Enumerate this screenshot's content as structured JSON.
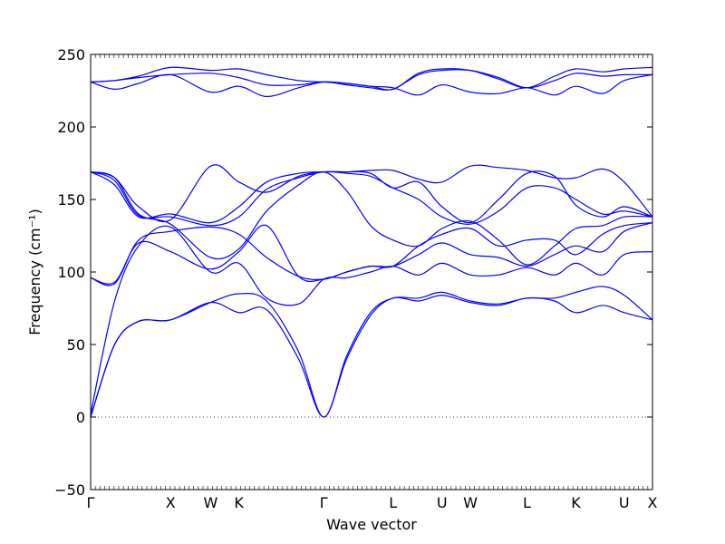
{
  "chart_data": {
    "type": "line",
    "title": "",
    "xlabel": "Wave vector",
    "ylabel": "Frequency (cm⁻¹)",
    "ylim": [
      -50,
      250
    ],
    "yticks": [
      -50,
      0,
      50,
      100,
      150,
      200,
      250
    ],
    "grid": false,
    "legend": "none",
    "zero_line": {
      "y": 0,
      "style": "dotted"
    },
    "high_symmetry_points": [
      {
        "label": "Γ",
        "x": 0.0
      },
      {
        "label": "X",
        "x": 1.0
      },
      {
        "label": "W",
        "x": 1.5
      },
      {
        "label": "K",
        "x": 1.854
      },
      {
        "label": "Γ",
        "x": 2.914
      },
      {
        "label": "L",
        "x": 3.78
      },
      {
        "label": "U",
        "x": 4.393
      },
      {
        "label": "W",
        "x": 4.747
      },
      {
        "label": "L",
        "x": 5.454
      },
      {
        "label": "K",
        "x": 6.067
      },
      {
        "label": "U",
        "x": 6.67
      },
      {
        "label": "X",
        "x": 7.024
      }
    ],
    "band_color": "#0000ff",
    "series": [
      {
        "x": [
          0,
          0.3,
          0.6,
          1.0,
          1.5,
          1.854,
          2.2,
          2.6,
          2.914,
          3.2,
          3.5,
          3.78,
          4.1,
          4.393,
          4.747,
          5.1,
          5.454,
          5.8,
          6.067,
          6.4,
          6.67,
          7.024
        ],
        "values": [
          0,
          50,
          66,
          67,
          79,
          72,
          74,
          40,
          0,
          40,
          70,
          82,
          80,
          84,
          79,
          77,
          82,
          80,
          72,
          77,
          72,
          67
        ]
      },
      {
        "x": [
          0,
          0.3,
          0.6,
          1.0,
          1.5,
          1.854,
          2.2,
          2.6,
          2.914,
          3.2,
          3.5,
          3.78,
          4.1,
          4.393,
          4.747,
          5.1,
          5.454,
          5.8,
          6.067,
          6.4,
          6.67,
          7.024
        ],
        "values": [
          0,
          50,
          66,
          67,
          79,
          85,
          80,
          45,
          0,
          42,
          72,
          82,
          82,
          86,
          80,
          78,
          82,
          82,
          86,
          90,
          84,
          67
        ]
      },
      {
        "x": [
          0,
          0.3,
          0.6,
          1.0,
          1.5,
          1.854,
          2.2,
          2.6,
          2.914,
          3.2,
          3.5,
          3.78,
          4.1,
          4.393,
          4.747,
          5.1,
          5.454,
          5.8,
          6.067,
          6.4,
          6.67,
          7.024
        ],
        "values": [
          2,
          80,
          118,
          131,
          100,
          106,
          82,
          78,
          95,
          96,
          100,
          104,
          98,
          106,
          98,
          98,
          103,
          98,
          106,
          98,
          112,
          114
        ]
      },
      {
        "x": [
          0,
          0.3,
          0.6,
          1.0,
          1.5,
          1.854,
          2.2,
          2.6,
          2.914,
          3.2,
          3.5,
          3.78,
          4.1,
          4.393,
          4.747,
          5.1,
          5.454,
          5.8,
          6.067,
          6.4,
          6.67,
          7.024
        ],
        "values": [
          96,
          93,
          120,
          114,
          102,
          114,
          132,
          97,
          95,
          100,
          104,
          104,
          112,
          120,
          112,
          110,
          104,
          112,
          118,
          114,
          128,
          134
        ]
      },
      {
        "x": [
          0,
          0.3,
          0.6,
          1.0,
          1.5,
          1.854,
          2.2,
          2.6,
          2.914,
          3.2,
          3.5,
          3.78,
          4.1,
          4.393,
          4.747,
          5.1,
          5.454,
          5.8,
          6.067,
          6.4,
          6.67,
          7.024
        ],
        "values": [
          96,
          92,
          122,
          128,
          131,
          126,
          110,
          97,
          95,
          100,
          104,
          104,
          118,
          126,
          130,
          118,
          122,
          122,
          112,
          126,
          132,
          134
        ]
      },
      {
        "x": [
          0,
          0.3,
          0.6,
          1.0,
          1.5,
          1.854,
          2.2,
          2.6,
          2.914,
          3.2,
          3.5,
          3.78,
          4.1,
          4.393,
          4.747,
          5.1,
          5.454,
          5.8,
          6.067,
          6.4,
          6.67,
          7.024
        ],
        "values": [
          169,
          165,
          140,
          133,
          110,
          116,
          142,
          160,
          169,
          156,
          132,
          122,
          118,
          130,
          135,
          122,
          105,
          118,
          130,
          132,
          138,
          138
        ]
      },
      {
        "x": [
          0,
          0.3,
          0.6,
          1.0,
          1.5,
          1.854,
          2.2,
          2.6,
          2.914,
          3.2,
          3.5,
          3.78,
          4.1,
          4.393,
          4.747,
          5.1,
          5.454,
          5.8,
          6.067,
          6.4,
          6.67,
          7.024
        ],
        "values": [
          169,
          163,
          139,
          138,
          132,
          138,
          157,
          165,
          169,
          168,
          166,
          158,
          150,
          138,
          133,
          142,
          158,
          158,
          150,
          140,
          142,
          138
        ]
      },
      {
        "x": [
          0,
          0.3,
          0.6,
          1.0,
          1.5,
          1.854,
          2.2,
          2.6,
          2.914,
          3.2,
          3.5,
          3.78,
          4.1,
          4.393,
          4.747,
          5.1,
          5.454,
          5.8,
          6.067,
          6.4,
          6.67,
          7.024
        ],
        "values": [
          169,
          160,
          138,
          140,
          134,
          145,
          162,
          168,
          169,
          169,
          168,
          158,
          162,
          145,
          134,
          150,
          168,
          166,
          146,
          138,
          145,
          138
        ]
      },
      {
        "x": [
          0,
          0.3,
          0.6,
          1.0,
          1.5,
          1.854,
          2.2,
          2.6,
          2.914,
          3.2,
          3.5,
          3.78,
          4.1,
          4.393,
          4.747,
          5.1,
          5.454,
          5.8,
          6.067,
          6.4,
          6.67,
          7.024
        ],
        "values": [
          169,
          165,
          145,
          136,
          173,
          162,
          155,
          166,
          169,
          169,
          170,
          170,
          164,
          162,
          173,
          172,
          170,
          165,
          165,
          171,
          162,
          138
        ]
      },
      {
        "x": [
          0,
          0.3,
          0.6,
          1.0,
          1.5,
          1.854,
          2.2,
          2.6,
          2.914,
          3.2,
          3.5,
          3.78,
          4.1,
          4.393,
          4.747,
          5.1,
          5.454,
          5.8,
          6.067,
          6.4,
          6.67,
          7.024
        ],
        "values": [
          231,
          226,
          230,
          236,
          224,
          228,
          221,
          227,
          231,
          230,
          228,
          227,
          222,
          229,
          224,
          223,
          227,
          222,
          228,
          223,
          232,
          236
        ]
      },
      {
        "x": [
          0,
          0.3,
          0.6,
          1.0,
          1.5,
          1.854,
          2.2,
          2.6,
          2.914,
          3.2,
          3.5,
          3.78,
          4.1,
          4.393,
          4.747,
          5.1,
          5.454,
          5.8,
          6.067,
          6.4,
          6.67,
          7.024
        ],
        "values": [
          231,
          232,
          234,
          236,
          237,
          234,
          229,
          229,
          231,
          229,
          227,
          226,
          236,
          239,
          239,
          234,
          227,
          232,
          237,
          235,
          236,
          236
        ]
      },
      {
        "x": [
          0,
          0.3,
          0.6,
          1.0,
          1.5,
          1.854,
          2.2,
          2.6,
          2.914,
          3.2,
          3.5,
          3.78,
          4.1,
          4.393,
          4.747,
          5.1,
          5.454,
          5.8,
          6.067,
          6.4,
          6.67,
          7.024
        ],
        "values": [
          231,
          232,
          235,
          241,
          239,
          240,
          236,
          232,
          231,
          230,
          228,
          226,
          237,
          240,
          239,
          233,
          227,
          235,
          240,
          238,
          240,
          241
        ]
      }
    ]
  }
}
